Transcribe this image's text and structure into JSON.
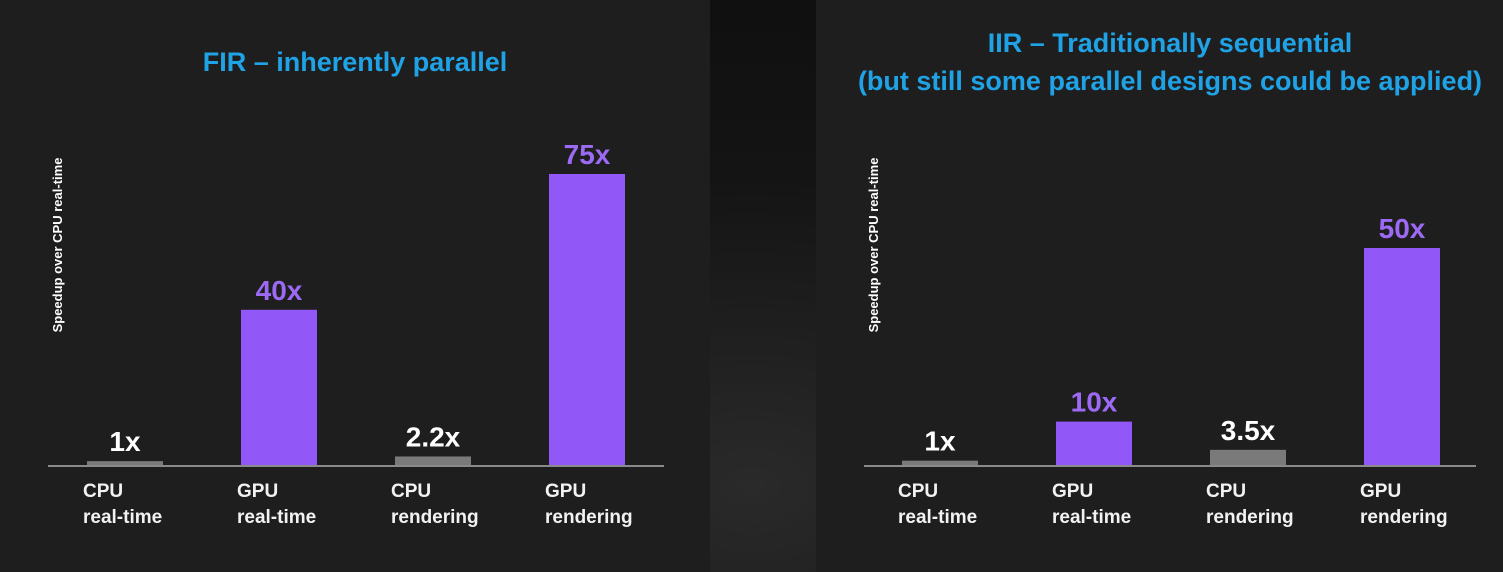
{
  "colors": {
    "gpu_bar": "#9257f7",
    "cpu_bar": "#7a7a7a",
    "gpu_label": "#9d6af5",
    "cpu_label": "#ffffff",
    "title": "#1fa3e6",
    "axis_line": "#8a8a8a"
  },
  "chart_data": [
    {
      "type": "bar",
      "title_lines": [
        "FIR – inherently parallel"
      ],
      "ylabel": "Speedup over CPU real-time",
      "xlabel": "",
      "ylim": [
        0,
        75
      ],
      "grid": false,
      "categories": [
        [
          "CPU",
          "real-time"
        ],
        [
          "GPU",
          "real-time"
        ],
        [
          "CPU",
          "rendering"
        ],
        [
          "GPU",
          "rendering"
        ]
      ],
      "values": [
        1,
        40,
        2.2,
        75
      ],
      "value_labels": [
        "1x",
        "40x",
        "2.2x",
        "75x"
      ],
      "bar_kinds": [
        "cpu",
        "gpu",
        "cpu",
        "gpu"
      ]
    },
    {
      "type": "bar",
      "title_lines": [
        "IIR – Traditionally sequential",
        "(but still some parallel designs could be applied)"
      ],
      "ylabel": "Speedup over CPU real-time",
      "xlabel": "",
      "ylim": [
        0,
        50
      ],
      "grid": false,
      "categories": [
        [
          "CPU",
          "real-time"
        ],
        [
          "GPU",
          "real-time"
        ],
        [
          "CPU",
          "rendering"
        ],
        [
          "GPU",
          "rendering"
        ]
      ],
      "values": [
        1,
        10,
        3.5,
        50
      ],
      "value_labels": [
        "1x",
        "10x",
        "3.5x",
        "50x"
      ],
      "bar_kinds": [
        "cpu",
        "gpu",
        "cpu",
        "gpu"
      ]
    }
  ]
}
